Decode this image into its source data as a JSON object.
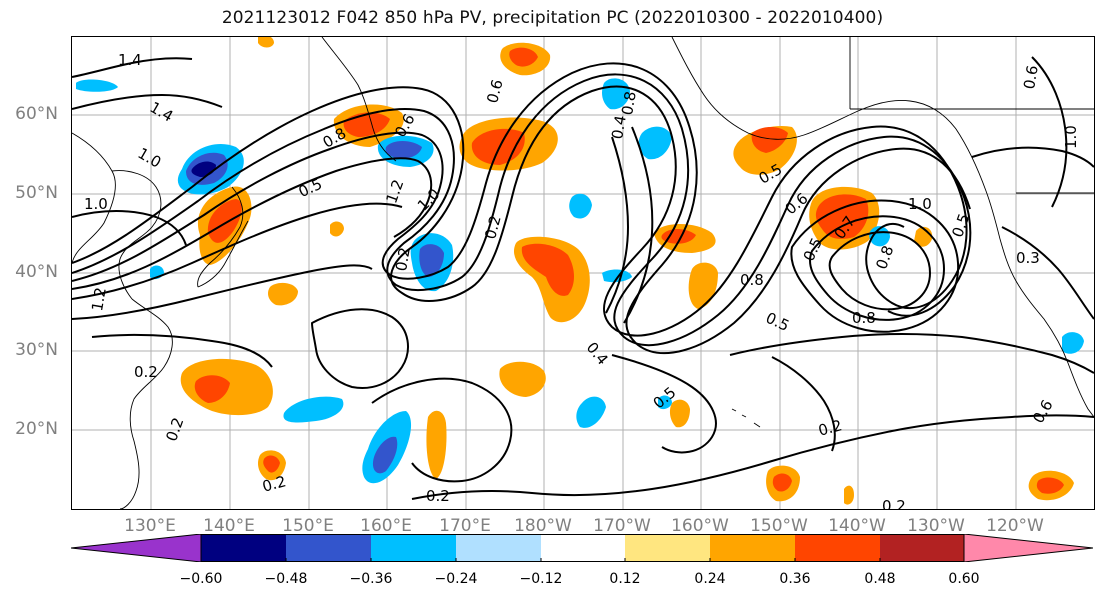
{
  "title": "2021123012 F042 850 hPa PV, precipitation PC (2022010300 - 2022010400)",
  "map": {
    "lat_labels": [
      "60°N",
      "50°N",
      "40°N",
      "30°N",
      "20°N"
    ],
    "lon_labels": [
      "130°E",
      "140°E",
      "150°E",
      "160°E",
      "170°E",
      "180°W",
      "170°W",
      "160°W",
      "150°W",
      "140°W",
      "130°W",
      "120°W"
    ],
    "contour_labels": [
      "1.4",
      "1.4",
      "1.0",
      "1.0",
      "1.2",
      "0.5",
      "1.0",
      "0.8",
      "0.6",
      "0.2",
      "0.6",
      "0.4",
      "0.5",
      "0.8",
      "0.6",
      "0.5",
      "0.7",
      "1.0",
      "0.5",
      "0.8",
      "0.8",
      "0.5",
      "0.8",
      "0.2",
      "0.2",
      "0.5",
      "0.2",
      "0.4",
      "0.2",
      "0.2",
      "0.2",
      "0.3",
      "0.6",
      "1.0",
      "1.2",
      "0.6",
      "0.2"
    ],
    "grid": true
  },
  "colorbar": {
    "colors": [
      "#9933cc",
      "#000080",
      "#3355cc",
      "#00bfff",
      "#b0e0ff",
      "#ffffff",
      "#ffe680",
      "#ffa500",
      "#ff4500",
      "#b22222",
      "#ff88aa",
      "#ff88aa"
    ],
    "tick_labels": [
      "−0.60",
      "−0.48",
      "−0.36",
      "−0.24",
      "−0.12",
      "0.12",
      "0.24",
      "0.36",
      "0.48",
      "0.60"
    ],
    "tick_values": [
      -0.6,
      -0.48,
      -0.36,
      -0.24,
      -0.12,
      0.12,
      0.24,
      0.36,
      0.48,
      0.6
    ]
  }
}
